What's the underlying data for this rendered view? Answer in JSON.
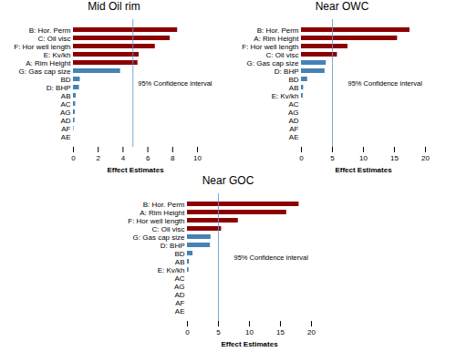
{
  "chart_data": [
    {
      "type": "bar",
      "orientation": "horizontal",
      "title": "Mid Oil rim",
      "xlabel": "Effect Estimates",
      "xlim": [
        0,
        10
      ],
      "xticks": [
        0,
        2,
        4,
        6,
        8,
        10
      ],
      "categories": [
        "B: Hor. Perm",
        "C: Oil visc",
        "F: Hor well length",
        "E: Kv/kh",
        "A: Rim Height",
        "G: Gas cap size",
        "BD",
        "D: BHP",
        "AB",
        "AC",
        "AG",
        "AD",
        "AF",
        "AE"
      ],
      "values": [
        8.4,
        7.8,
        6.6,
        5.3,
        5.2,
        3.8,
        0.55,
        0.48,
        0.22,
        0.18,
        0.15,
        0.12,
        0.04,
        0.0
      ],
      "colors": [
        "#8B0000",
        "#8B0000",
        "#8B0000",
        "#8B0000",
        "#8B0000",
        "#4682B4",
        "#4682B4",
        "#4682B4",
        "#4682B4",
        "#4682B4",
        "#4682B4",
        "#4682B4",
        "#4682B4",
        "#4682B4"
      ],
      "confidence_line": {
        "value": 4.8,
        "color": "#6699CC"
      },
      "annotations": [
        {
          "text": "95% Confidence interval",
          "x": 5.2
        }
      ]
    },
    {
      "type": "bar",
      "orientation": "horizontal",
      "title": "Near OWC",
      "xlabel": "Effect Estimates",
      "xlim": [
        0,
        20
      ],
      "xticks": [
        0,
        5,
        10,
        15,
        20
      ],
      "categories": [
        "B: Hor. Perm",
        "A: Rim Height",
        "F: Hor well length",
        "C: Oil visc",
        "G: Gas cap size",
        "D: BHP",
        "BD",
        "AB",
        "E: Kv/kh",
        "AC",
        "AG",
        "AD",
        "AF",
        "AE"
      ],
      "values": [
        17.5,
        15.5,
        7.5,
        5.8,
        4.0,
        3.8,
        1.0,
        0.35,
        0.28,
        0.0,
        0.0,
        0.0,
        0.0,
        0.0
      ],
      "colors": [
        "#8B0000",
        "#8B0000",
        "#8B0000",
        "#8B0000",
        "#4682B4",
        "#4682B4",
        "#4682B4",
        "#4682B4",
        "#4682B4",
        "#4682B4",
        "#4682B4",
        "#4682B4",
        "#4682B4",
        "#4682B4"
      ],
      "confidence_line": {
        "value": 5.0,
        "color": "#6699CC"
      },
      "annotations": [
        {
          "text": "95% Confidence interval",
          "x": 7.5
        }
      ]
    },
    {
      "type": "bar",
      "orientation": "horizontal",
      "title": "Near GOC",
      "xlabel": "Effect Estimates",
      "xlim": [
        0,
        20
      ],
      "xticks": [
        0,
        5,
        10,
        15,
        20
      ],
      "categories": [
        "B: Hor. Perm",
        "A: Rim Height",
        "F: Hor well length",
        "C: Oil visc",
        "G: Gas cap size",
        "D: BHP",
        "BD",
        "AB",
        "E: Kv/kh",
        "AC",
        "AG",
        "AD",
        "AF",
        "AE"
      ],
      "values": [
        18.0,
        16.0,
        8.2,
        5.5,
        3.8,
        3.7,
        0.9,
        0.32,
        0.25,
        0.0,
        0.0,
        0.0,
        0.0,
        0.0
      ],
      "colors": [
        "#8B0000",
        "#8B0000",
        "#8B0000",
        "#8B0000",
        "#4682B4",
        "#4682B4",
        "#4682B4",
        "#4682B4",
        "#4682B4",
        "#4682B4",
        "#4682B4",
        "#4682B4",
        "#4682B4",
        "#4682B4"
      ],
      "confidence_line": {
        "value": 5.0,
        "color": "#6699CC"
      },
      "annotations": [
        {
          "text": "95% Confidence interval",
          "x": 7.5
        }
      ]
    }
  ]
}
